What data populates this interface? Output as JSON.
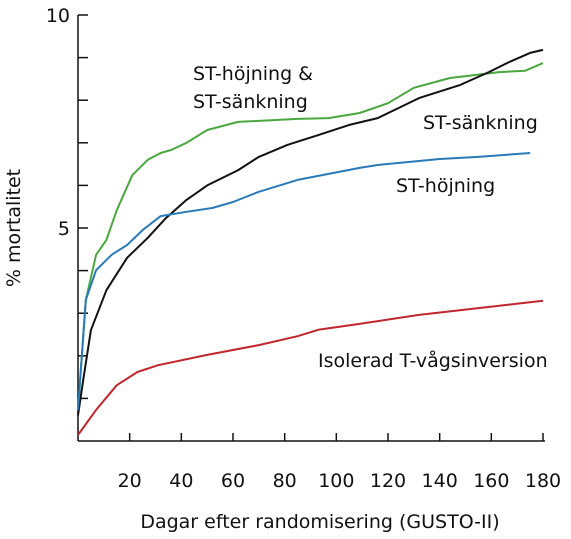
{
  "chart_data": {
    "type": "line",
    "xlabel": "Dagar efter randomisering (GUSTO-II)",
    "ylabel": "% mortalitet",
    "xlim": [
      0,
      180
    ],
    "xticks": [
      20,
      40,
      60,
      80,
      100,
      120,
      140,
      160,
      180
    ],
    "ylim": [
      0,
      10
    ],
    "yticks": [
      5,
      10
    ],
    "yminorticks": [
      1,
      2,
      3,
      4,
      6,
      7,
      8,
      9
    ],
    "series": [
      {
        "name": "ST-höjning & ST-sänkning",
        "color": "#4aa63f",
        "x": [
          0,
          3,
          7,
          11,
          15,
          21,
          27,
          32,
          36,
          42,
          50,
          62,
          85,
          97,
          109,
          120,
          130,
          144,
          163,
          173,
          180
        ],
        "values": [
          0.73,
          3.31,
          4.37,
          4.72,
          5.42,
          6.24,
          6.6,
          6.76,
          6.83,
          7.0,
          7.3,
          7.49,
          7.56,
          7.58,
          7.7,
          7.93,
          8.29,
          8.52,
          8.66,
          8.69,
          8.87
        ]
      },
      {
        "name": "ST-sänkning",
        "color": "#111111",
        "x": [
          0,
          2,
          5,
          11,
          19,
          27,
          34,
          42,
          50,
          62,
          70,
          81,
          93,
          105,
          116,
          132,
          148,
          159,
          167,
          175,
          180
        ],
        "values": [
          0.6,
          1.43,
          2.6,
          3.54,
          4.3,
          4.77,
          5.23,
          5.66,
          6.0,
          6.36,
          6.67,
          6.95,
          7.18,
          7.42,
          7.58,
          8.05,
          8.36,
          8.66,
          8.9,
          9.11,
          9.18
        ]
      },
      {
        "name": "ST-höjning",
        "color": "#2a7ab8",
        "x": [
          0,
          3,
          7,
          13,
          19,
          25,
          32,
          42,
          52,
          60,
          70,
          85,
          109,
          116,
          140,
          155,
          175
        ],
        "values": [
          0.73,
          3.31,
          4.01,
          4.37,
          4.6,
          4.95,
          5.28,
          5.38,
          5.47,
          5.61,
          5.85,
          6.13,
          6.41,
          6.48,
          6.62,
          6.67,
          6.76
        ]
      },
      {
        "name": "Isolerad T-vågsinversion",
        "color": "#c0262d",
        "x": [
          0,
          7,
          15,
          23,
          31,
          50,
          70,
          85,
          93,
          109,
          132,
          155,
          180
        ],
        "values": [
          0.14,
          0.73,
          1.31,
          1.62,
          1.78,
          2.02,
          2.25,
          2.46,
          2.61,
          2.75,
          2.96,
          3.12,
          3.29
        ]
      }
    ]
  }
}
